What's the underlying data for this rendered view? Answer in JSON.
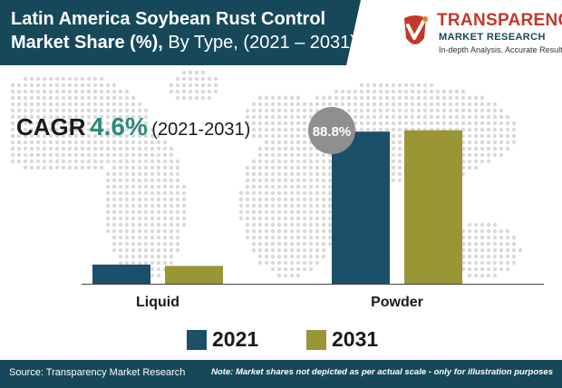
{
  "header": {
    "title_bold_1": "Latin America Soybean Rust Control",
    "title_bold_2": "Market Share (%),",
    "title_rest_2": " By Type, (2021 – 2031)"
  },
  "logo": {
    "name": "TRANSPARENCY",
    "sub": "MARKET RESEARCH",
    "tagline": "In-depth Analysis. Accurate Results"
  },
  "cagr": {
    "label": "CAGR",
    "value": "4.6%",
    "period": "(2021-2031)"
  },
  "chart_data": {
    "type": "bar",
    "categories": [
      "Liquid",
      "Powder"
    ],
    "series": [
      {
        "name": "2021",
        "values": [
          11.2,
          88.8
        ],
        "color": "#1b5068"
      },
      {
        "name": "2031",
        "values": [
          10.4,
          89.6
        ],
        "color": "#9a9535"
      }
    ],
    "annotation": "88.8%",
    "ylim": [
      0,
      100
    ],
    "grid": false,
    "legend_position": "bottom"
  },
  "footer": {
    "source": "Source: Transparency Market Research",
    "note": "Note: Market shares not depicted as per actual scale - only for illustration purposes"
  },
  "colors": {
    "header_bg": "#17485a",
    "accent_teal": "#2b8a78",
    "logo_red": "#c0392b",
    "map_dots": "#d9d9d9"
  }
}
